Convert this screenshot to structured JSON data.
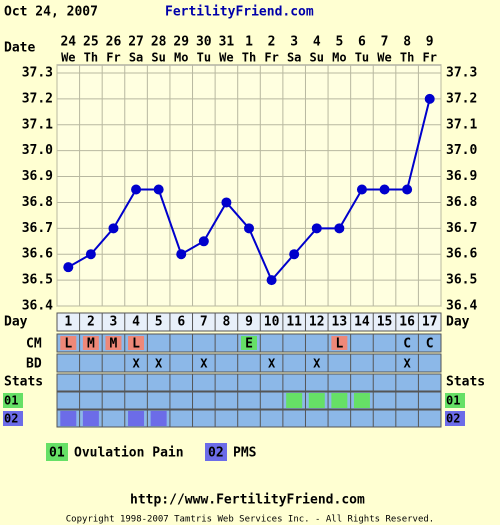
{
  "header": {
    "date": "Oct 24, 2007",
    "site": "FertilityFriend.com"
  },
  "chart_data": {
    "type": "line",
    "row_labels": {
      "date": "Date",
      "day": "Day",
      "cm": "CM",
      "bd": "BD",
      "stats": "Stats"
    },
    "categories": [
      "24",
      "25",
      "26",
      "27",
      "28",
      "29",
      "30",
      "31",
      "1",
      "2",
      "3",
      "4",
      "5",
      "6",
      "7",
      "8",
      "9"
    ],
    "weekdays": [
      "We",
      "Th",
      "Fr",
      "Sa",
      "Su",
      "Mo",
      "Tu",
      "We",
      "Th",
      "Fr",
      "Sa",
      "Su",
      "Mo",
      "Tu",
      "We",
      "Th",
      "Fr"
    ],
    "days": [
      1,
      2,
      3,
      4,
      5,
      6,
      7,
      8,
      9,
      10,
      11,
      12,
      13,
      14,
      15,
      16,
      17
    ],
    "series": [
      {
        "color": "#0000cc",
        "values": [
          36.55,
          36.6,
          36.7,
          36.85,
          36.85,
          36.6,
          36.65,
          36.8,
          36.7,
          36.5,
          36.6,
          36.7,
          36.7,
          36.85,
          36.85,
          36.85,
          37.2
        ]
      }
    ],
    "ylim": [
      36.4,
      37.3
    ],
    "yticks": [
      36.4,
      36.5,
      36.6,
      36.7,
      36.8,
      36.9,
      {
        "value": 37.0,
        "label": "37.0"
      },
      37.1,
      37.2,
      37.3
    ],
    "grid": true,
    "cm": [
      "L",
      "M",
      "M",
      "L",
      null,
      null,
      null,
      null,
      "E",
      null,
      null,
      null,
      "L",
      null,
      null,
      "C",
      "C"
    ],
    "cm_colors": {
      "L": "#ee8878",
      "M": "#ee8878",
      "E": "#66e066"
    },
    "bd": {
      "mark": "X",
      "days": [
        4,
        5,
        7,
        10,
        12,
        16
      ]
    },
    "stats": [
      {
        "code": "01",
        "name": "Ovulation Pain",
        "color": "#66e066",
        "days": [
          11,
          12,
          13,
          14
        ]
      },
      {
        "code": "02",
        "name": "PMS",
        "color": "#6c6ce8",
        "days": [
          1,
          2,
          4,
          5
        ]
      }
    ]
  },
  "footer": {
    "url": "http://www.FertilityFriend.com",
    "copyright": "Copyright 1998-2007 Tamtris Web Services Inc. - All Rights Reserved."
  }
}
